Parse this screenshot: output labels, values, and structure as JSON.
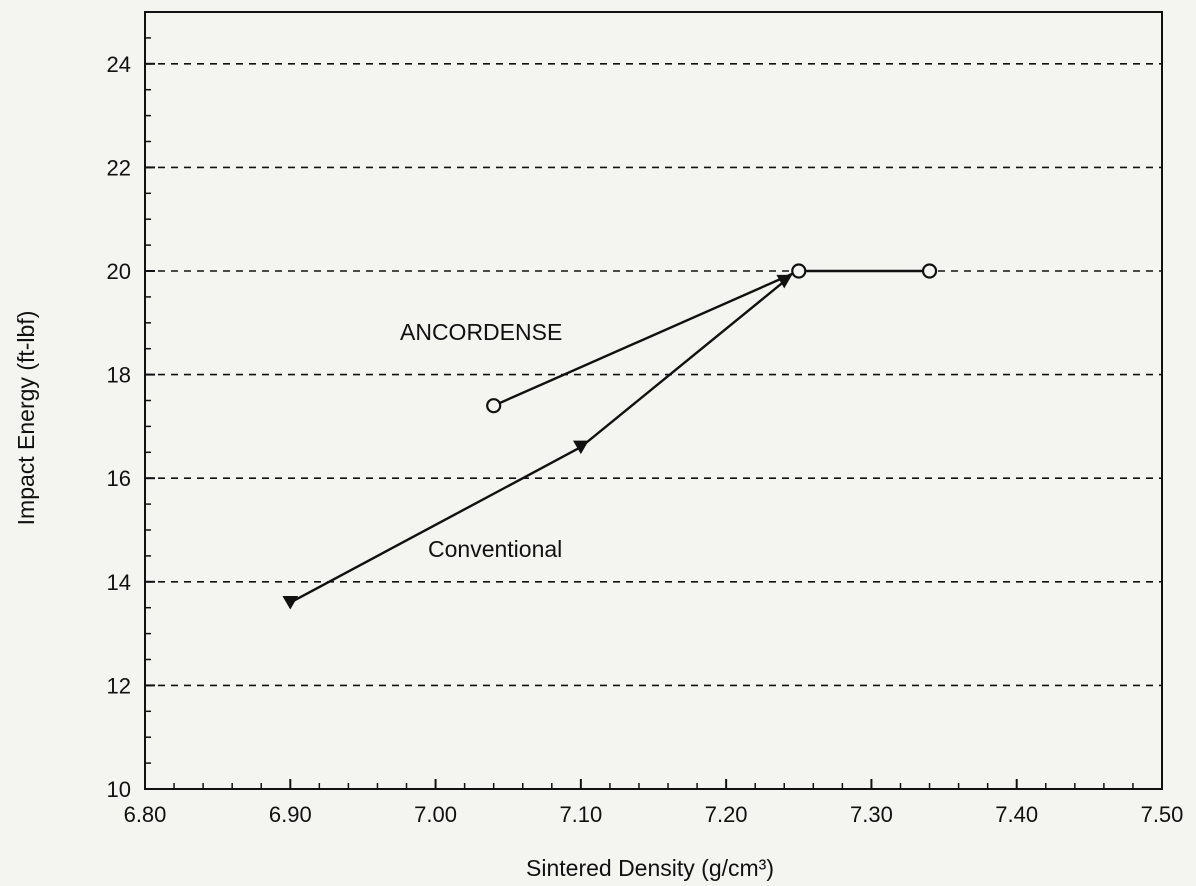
{
  "chart_data": {
    "type": "line",
    "title": "",
    "xlabel": "Sintered Density (g/cm³)",
    "ylabel": "Impact Energy (ft-lbf)",
    "xlim": [
      6.8,
      7.5
    ],
    "ylim": [
      10,
      25
    ],
    "x_ticks": [
      "6.80",
      "6.90",
      "7.00",
      "7.10",
      "7.20",
      "7.30",
      "7.40",
      "7.50"
    ],
    "y_ticks": [
      "10",
      "12",
      "14",
      "16",
      "18",
      "20",
      "22",
      "24"
    ],
    "gridlines": "horizontal dashed",
    "series": [
      {
        "name": "ANCORDENSE",
        "marker": "open-circle",
        "points": [
          {
            "x": 7.04,
            "y": 17.4
          },
          {
            "x": 7.25,
            "y": 20.0
          },
          {
            "x": 7.34,
            "y": 20.0
          }
        ]
      },
      {
        "name": "Conventional",
        "marker": "filled-triangle-down",
        "points": [
          {
            "x": 6.9,
            "y": 13.6
          },
          {
            "x": 7.1,
            "y": 16.6
          },
          {
            "x": 7.24,
            "y": 19.8
          }
        ]
      }
    ]
  },
  "colors": {
    "background": "#f4f4f1",
    "ink": "#111111"
  }
}
